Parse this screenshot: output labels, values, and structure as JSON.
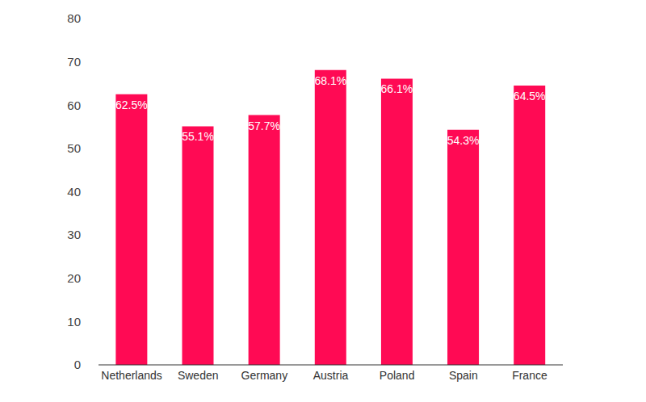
{
  "chart_data": {
    "type": "bar",
    "categories": [
      "Netherlands",
      "Sweden",
      "Germany",
      "Austria",
      "Poland",
      "Spain",
      "France"
    ],
    "values": [
      62.5,
      55.1,
      57.7,
      68.1,
      66.1,
      54.3,
      64.5
    ],
    "value_labels": [
      "62.5%",
      "55.1%",
      "57.7%",
      "68.1%",
      "66.1%",
      "54.3%",
      "64.5%"
    ],
    "color": "#ff0a54",
    "ylim": [
      0,
      80
    ],
    "yticks": [
      0,
      10,
      20,
      30,
      40,
      50,
      60,
      70,
      80
    ],
    "grid": false,
    "data_labels": true
  }
}
